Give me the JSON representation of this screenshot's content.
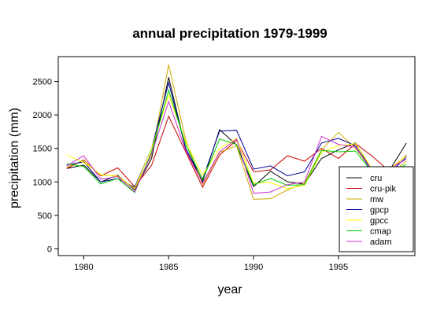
{
  "chart_data": {
    "type": "line",
    "title": "annual precipitation 1979-1999",
    "xlabel": "year",
    "ylabel": "precipitation (mm)",
    "xlim": [
      1978.5,
      1999.5
    ],
    "ylim": [
      -100,
      2870
    ],
    "xticks": [
      1980,
      1985,
      1990,
      1995
    ],
    "yticks": [
      0,
      500,
      1000,
      1500,
      2000,
      2500
    ],
    "grid": false,
    "legend_position": "bottom-right",
    "x": [
      1979,
      1980,
      1981,
      1982,
      1983,
      1984,
      1985,
      1986,
      1987,
      1988,
      1989,
      1990,
      1991,
      1992,
      1993,
      1994,
      1995,
      1996,
      1997,
      1998,
      1999
    ],
    "series": [
      {
        "name": "cru",
        "color": "#000000",
        "values": [
          1200,
          1250,
          1000,
          1100,
          880,
          1350,
          2560,
          1500,
          1000,
          1780,
          1550,
          930,
          1160,
          1000,
          970,
          1350,
          1480,
          1580,
          1150,
          1170,
          1580
        ]
      },
      {
        "name": "cru-pik",
        "color": "#cc0000",
        "values": [
          1200,
          1330,
          1090,
          1210,
          930,
          1250,
          1980,
          1450,
          920,
          1400,
          1620,
          1150,
          1180,
          1390,
          1310,
          1500,
          1350,
          1570,
          1380,
          1160,
          1400
        ]
      },
      {
        "name": "mw",
        "color": "#ccaa00",
        "values": [
          1220,
          1320,
          1100,
          1090,
          900,
          1400,
          2750,
          1630,
          960,
          1440,
          1540,
          740,
          750,
          880,
          980,
          1480,
          1740,
          1500,
          1170,
          1110,
          1310
        ]
      },
      {
        "name": "gpcp",
        "color": "#000099",
        "values": [
          1250,
          1300,
          1000,
          1050,
          920,
          1500,
          2480,
          1500,
          1040,
          1760,
          1770,
          1190,
          1240,
          1090,
          1150,
          1580,
          1650,
          1540,
          1140,
          1130,
          1370
        ]
      },
      {
        "name": "gpcc",
        "color": "#ffff00",
        "values": [
          1400,
          1290,
          1110,
          1080,
          900,
          1500,
          2300,
          1600,
          1100,
          1500,
          1650,
          980,
          990,
          900,
          950,
          1440,
          1540,
          1570,
          1190,
          1190,
          1390
        ]
      },
      {
        "name": "cmap",
        "color": "#00cc00",
        "values": [
          1270,
          1230,
          970,
          1050,
          840,
          1450,
          2370,
          1560,
          1030,
          1640,
          1560,
          960,
          1050,
          950,
          960,
          1470,
          1450,
          1460,
          1140,
          1140,
          1260
        ]
      },
      {
        "name": "adam",
        "color": "#cc33cc",
        "values": [
          1240,
          1390,
          1040,
          1080,
          850,
          1420,
          2200,
          1470,
          980,
          1450,
          1640,
          830,
          850,
          960,
          1000,
          1680,
          1560,
          1520,
          1170,
          1190,
          1340
        ]
      }
    ]
  }
}
